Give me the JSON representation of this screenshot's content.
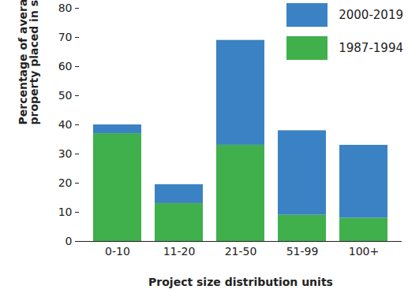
{
  "chart_data": {
    "type": "bar",
    "stacked": true,
    "categories": [
      "0-10",
      "11-20",
      "21-50",
      "51-99",
      "100+"
    ],
    "series": [
      {
        "name": "2000-2019",
        "color": "#3b82c4",
        "values": [
          3,
          6.5,
          36,
          29,
          25
        ]
      },
      {
        "name": "1987-1994",
        "color": "#3fb04b",
        "values": [
          37,
          13,
          33,
          9,
          8
        ]
      }
    ],
    "x_label": "Project size distribution units",
    "y_label": "Percentage of average number of units per property placed in service",
    "ylim": [
      0,
      80
    ],
    "yticks": [
      0,
      10,
      20,
      30,
      40,
      50,
      60,
      70,
      80
    ],
    "legend": "top-right",
    "grid": false
  }
}
